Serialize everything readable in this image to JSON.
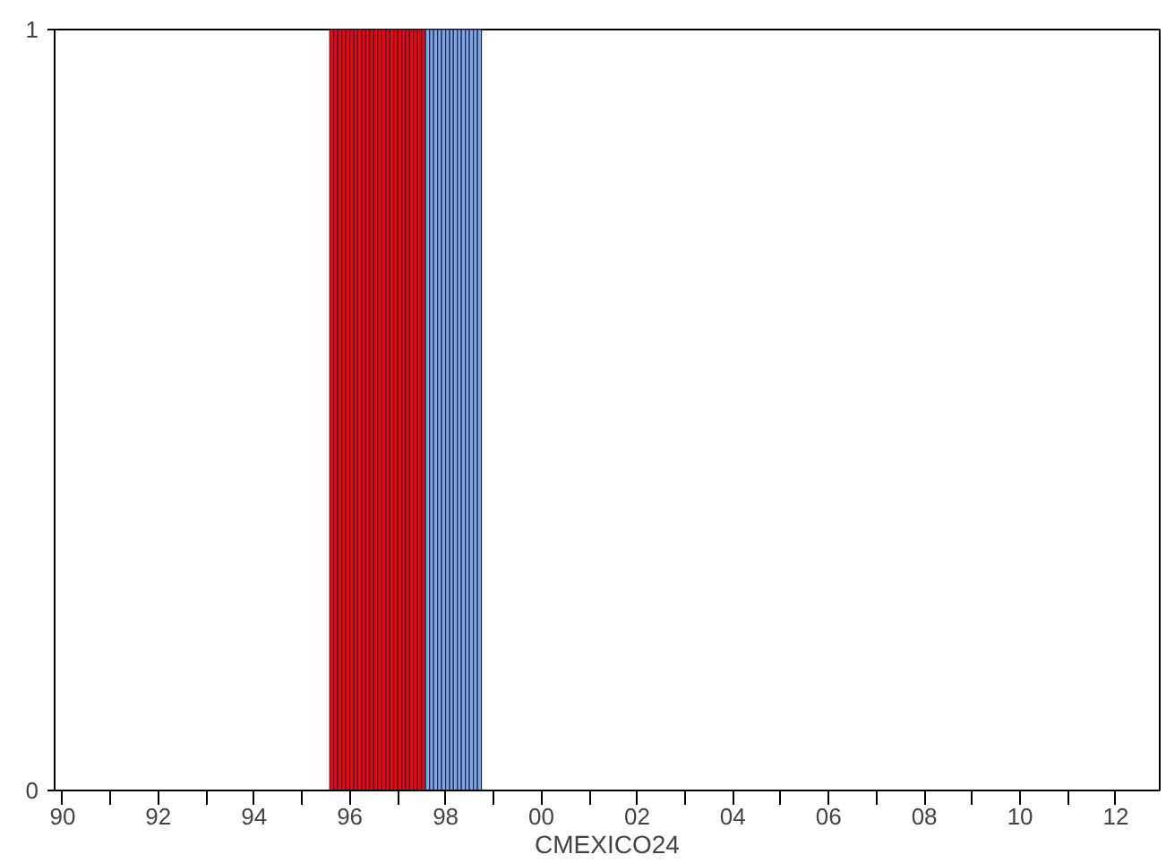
{
  "chart_data": {
    "type": "bar",
    "xlabel": "CMEXICO24",
    "x": [
      "1995-08",
      "1995-09",
      "1995-10",
      "1995-11",
      "1995-12",
      "1996-01",
      "1996-02",
      "1996-03",
      "1996-04",
      "1996-05",
      "1996-06",
      "1996-07",
      "1996-08",
      "1996-09",
      "1996-10",
      "1996-11",
      "1996-12",
      "1997-01",
      "1997-02",
      "1997-03",
      "1997-04",
      "1997-05",
      "1997-06",
      "1997-07",
      "1997-08",
      "1997-09",
      "1997-10",
      "1997-11",
      "1997-12",
      "1998-01",
      "1998-02",
      "1998-03",
      "1998-04",
      "1998-05",
      "1998-06",
      "1998-07",
      "1998-08",
      "1998-09"
    ],
    "values": [
      1,
      1,
      1,
      1,
      1,
      1,
      1,
      1,
      1,
      1,
      1,
      1,
      1,
      1,
      1,
      1,
      1,
      1,
      1,
      1,
      1,
      1,
      1,
      1,
      1,
      1,
      1,
      1,
      1,
      1,
      1,
      1,
      1,
      1,
      1,
      1,
      1,
      1
    ],
    "colors": [
      "#ff0000",
      "#ff0000",
      "#ff0000",
      "#ff0000",
      "#ff0000",
      "#ff0000",
      "#ff0000",
      "#ff0000",
      "#ff0000",
      "#ff0000",
      "#ff0000",
      "#ff0000",
      "#ff0000",
      "#ff0000",
      "#ff0000",
      "#ff0000",
      "#ff0000",
      "#ff0000",
      "#ff0000",
      "#ff0000",
      "#ff0000",
      "#ff0000",
      "#ff0000",
      "#ff0000",
      "#7fa7e6",
      "#7fa7e6",
      "#7fa7e6",
      "#7fa7e6",
      "#7fa7e6",
      "#7fa7e6",
      "#7fa7e6",
      "#7fa7e6",
      "#7fa7e6",
      "#7fa7e6",
      "#7fa7e6",
      "#7fa7e6",
      "#7fa7e6",
      "#7fa7e6"
    ],
    "xlim": [
      "1989-11",
      "2012-12"
    ],
    "xticks": [
      {
        "value": "1990",
        "label": "90"
      },
      {
        "value": "1991",
        "label": null
      },
      {
        "value": "1992",
        "label": "92"
      },
      {
        "value": "1993",
        "label": null
      },
      {
        "value": "1994",
        "label": "94"
      },
      {
        "value": "1995",
        "label": null
      },
      {
        "value": "1996",
        "label": "96"
      },
      {
        "value": "1997",
        "label": null
      },
      {
        "value": "1998",
        "label": "98"
      },
      {
        "value": "1999",
        "label": null
      },
      {
        "value": "2000",
        "label": "00"
      },
      {
        "value": "2001",
        "label": null
      },
      {
        "value": "2002",
        "label": "02"
      },
      {
        "value": "2003",
        "label": null
      },
      {
        "value": "2004",
        "label": "04"
      },
      {
        "value": "2005",
        "label": null
      },
      {
        "value": "2006",
        "label": "06"
      },
      {
        "value": "2007",
        "label": null
      },
      {
        "value": "2008",
        "label": "08"
      },
      {
        "value": "2009",
        "label": null
      },
      {
        "value": "2010",
        "label": "10"
      },
      {
        "value": "2011",
        "label": null
      },
      {
        "value": "2012",
        "label": "12"
      }
    ],
    "ylim": [
      0,
      1
    ],
    "yticks": [
      0,
      1
    ],
    "grid": false
  }
}
